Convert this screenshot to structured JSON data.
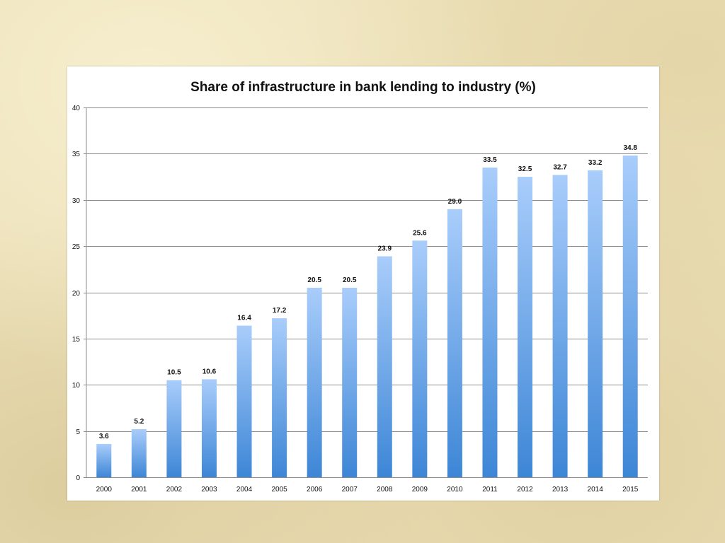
{
  "chart_data": {
    "type": "bar",
    "title": "Share of infrastructure in bank lending to industry (%)",
    "xlabel": "",
    "ylabel": "",
    "categories": [
      "2000",
      "2001",
      "2002",
      "2003",
      "2004",
      "2005",
      "2006",
      "2007",
      "2008",
      "2009",
      "2010",
      "2011",
      "2012",
      "2013",
      "2014",
      "2015"
    ],
    "values": [
      3.6,
      5.2,
      10.5,
      10.6,
      16.4,
      17.2,
      20.5,
      20.5,
      23.9,
      25.6,
      29.0,
      33.5,
      32.5,
      32.7,
      33.2,
      34.8
    ],
    "data_labels": [
      "3.6",
      "5.2",
      "10.5",
      "10.6",
      "16.4",
      "17.2",
      "20.5",
      "20.5",
      "23.9",
      "25.6",
      "29.0",
      "33.5",
      "32.5",
      "32.7",
      "33.2",
      "34.8"
    ],
    "ylim": [
      0,
      40
    ],
    "yticks": [
      "0",
      "5",
      "10",
      "15",
      "20",
      "25",
      "30",
      "35",
      "40"
    ],
    "grid": true,
    "legend": "none",
    "colors": {
      "bar_top": "#a9cdfb",
      "bar_bottom": "#3d86d6",
      "grid": "#8c8c8c",
      "axis": "#8c8c8c"
    }
  }
}
